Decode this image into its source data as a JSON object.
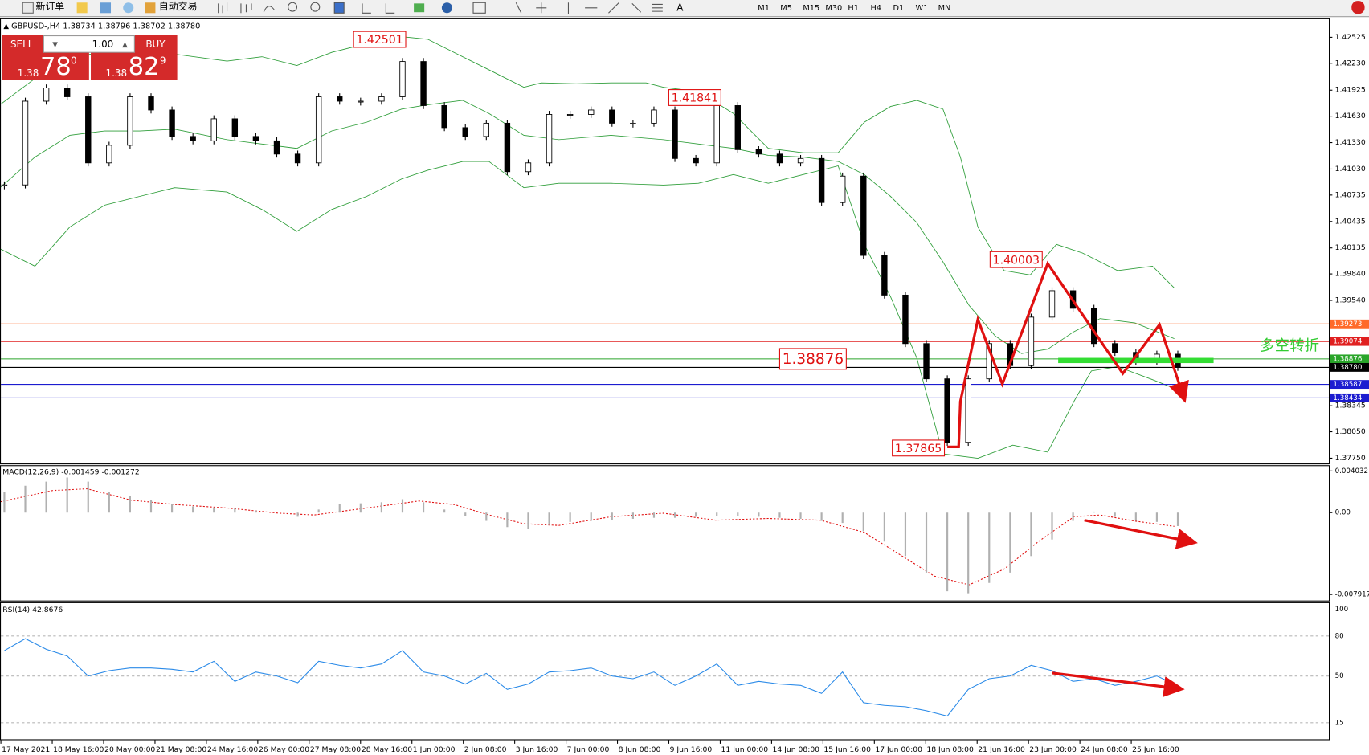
{
  "toolbar": {
    "new_order": "新订单",
    "auto_trading": "自动交易",
    "timeframes": [
      "M1",
      "M5",
      "M15",
      "M30",
      "H1",
      "H4",
      "D1",
      "W1",
      "MN"
    ]
  },
  "chart_data": {
    "type": "candlestick",
    "header": "GBPUSD-,H4  1.38734 1.38796 1.38702 1.38780",
    "trade_panel": {
      "sell": "SELL",
      "buy": "BUY",
      "lot": "1.00",
      "sell_prefix": "1.38",
      "sell_big": "78",
      "sell_sup": "0",
      "buy_prefix": "1.38",
      "buy_big": "82",
      "buy_sup": "9"
    },
    "time_labels": [
      "17 May 2021",
      "18 May 16:00",
      "20 May 00:00",
      "21 May 08:00",
      "24 May 16:00",
      "26 May 00:00",
      "27 May 08:00",
      "28 May 16:00",
      "1 Jun 00:00",
      "2 Jun 08:00",
      "3 Jun 16:00",
      "7 Jun 00:00",
      "8 Jun 08:00",
      "9 Jun 16:00",
      "11 Jun 00:00",
      "14 Jun 08:00",
      "15 Jun 16:00",
      "17 Jun 00:00",
      "18 Jun 08:00",
      "21 Jun 16:00",
      "23 Jun 00:00",
      "24 Jun 08:00",
      "25 Jun 16:00"
    ],
    "closes": [
      1.4085,
      1.418,
      1.4195,
      1.4185,
      1.411,
      1.413,
      1.4185,
      1.417,
      1.414,
      1.4135,
      1.416,
      1.414,
      1.4135,
      1.412,
      1.411,
      1.4185,
      1.418,
      1.418,
      1.4185,
      1.4225,
      1.4175,
      1.415,
      1.414,
      1.4155,
      1.41,
      1.411,
      1.4165,
      1.4165,
      1.417,
      1.4155,
      1.4155,
      1.417,
      1.4115,
      1.411,
      1.4175,
      1.4125,
      1.412,
      1.411,
      1.4115,
      1.4065,
      1.4095,
      1.4005,
      1.396,
      1.3905,
      1.3865,
      1.3793,
      1.3865,
      1.3905,
      1.388,
      1.3935,
      1.3965,
      1.3945,
      1.3905,
      1.3895,
      1.3885,
      1.3893,
      1.3878
    ],
    "ylim": [
      1.3769,
      1.4273
    ],
    "yticks": [
      {
        "value": 1.42525,
        "label": "1.42525"
      },
      {
        "value": 1.4223,
        "label": "1.42230"
      },
      {
        "value": 1.41925,
        "label": "1.41925"
      },
      {
        "value": 1.4163,
        "label": "1.41630"
      },
      {
        "value": 1.4133,
        "label": "1.41330"
      },
      {
        "value": 1.4103,
        "label": "1.41030"
      },
      {
        "value": 1.40735,
        "label": "1.40735"
      },
      {
        "value": 1.40435,
        "label": "1.40435"
      },
      {
        "value": 1.40135,
        "label": "1.40135"
      },
      {
        "value": 1.3984,
        "label": "1.39840"
      },
      {
        "value": 1.3954,
        "label": "1.39540"
      },
      {
        "value": 1.38345,
        "label": "1.38345"
      },
      {
        "value": 1.3805,
        "label": "1.38050"
      },
      {
        "value": 1.3775,
        "label": "1.37750"
      }
    ],
    "levels": [
      {
        "value": 1.39273,
        "color": "#ff6a2a"
      },
      {
        "value": 1.39074,
        "color": "#e02020"
      },
      {
        "value": 1.38876,
        "color": "#2aa52a"
      },
      {
        "value": 1.3878,
        "label": "1.38780",
        "color": "#000000"
      },
      {
        "value": 1.38587,
        "color": "#1c1cd0"
      },
      {
        "value": 1.38434,
        "color": "#1c1cd0"
      }
    ],
    "annotations": [
      1.42501,
      1.41841,
      1.40003,
      1.37865,
      1.38876
    ],
    "side_text": "多空转折",
    "macd": {
      "title": "MACD(12,26,9) -0.001459 -0.001272",
      "ylim": [
        -0.0085,
        0.0045
      ],
      "yticks": [
        0.004032,
        {
          "value": 0,
          "label": "0.00"
        },
        -0.007917
      ],
      "values": [
        0.002,
        0.0026,
        0.003,
        0.0034,
        0.003,
        0.002,
        0.0016,
        0.0012,
        0.0008,
        0.0006,
        0.0005,
        0.0004,
        0.0002,
        0,
        -0.0004,
        0.0003,
        0.0008,
        0.0009,
        0.001,
        0.0013,
        0.001,
        0.0003,
        -0.0003,
        -0.0008,
        -0.0014,
        -0.0016,
        -0.0012,
        -0.0009,
        -0.0008,
        -0.0007,
        -0.0006,
        -0.0005,
        -0.0005,
        -0.0004,
        -0.0003,
        -0.0003,
        -0.0004,
        -0.0005,
        -0.0006,
        -0.0008,
        -0.001,
        -0.0018,
        -0.0028,
        -0.0042,
        -0.0058,
        -0.0076,
        -0.0078,
        -0.0068,
        -0.0058,
        -0.0042,
        -0.0026,
        -0.0008,
        0.0001,
        -0.0004,
        -0.0008,
        -0.0009,
        -0.0013
      ]
    },
    "rsi": {
      "title": "RSI(14) 42.8676",
      "ylim": [
        0,
        100
      ],
      "yticks": [
        100,
        80,
        50,
        15
      ],
      "values": [
        69,
        78,
        70,
        65,
        50,
        54,
        56,
        56,
        55,
        53,
        61,
        46,
        53,
        50,
        45,
        61,
        58,
        56,
        59,
        69,
        53,
        50,
        44,
        52,
        40,
        44,
        53,
        54,
        56,
        50,
        48,
        53,
        43,
        50,
        59,
        43,
        46,
        44,
        43,
        37,
        53,
        30,
        28,
        27,
        24,
        20,
        40,
        48,
        50,
        58,
        54,
        46,
        48,
        43,
        46,
        50,
        42.8676
      ]
    }
  }
}
